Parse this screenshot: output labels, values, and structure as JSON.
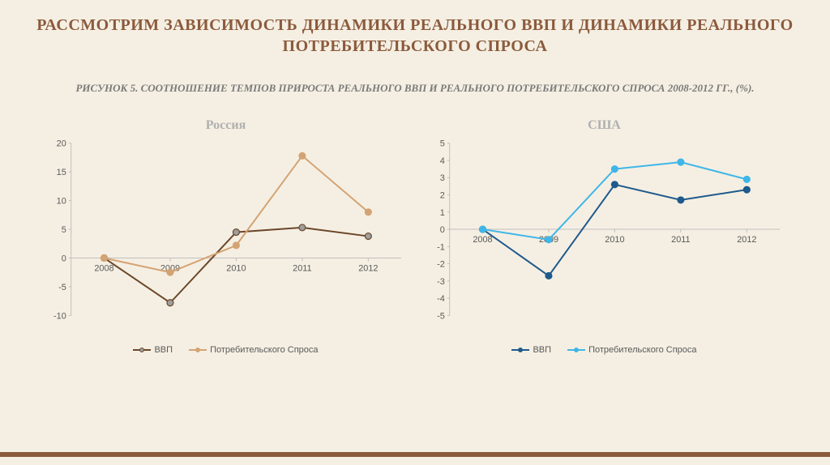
{
  "background_color": "#f5efe3",
  "main_title": "РАССМОТРИМ ЗАВИСИМОСТЬ ДИНАМИКИ РЕАЛЬНОГО ВВП И ДИНАМИКИ РЕАЛЬНОГО ПОТРЕБИТЕЛЬСКОГО СПРОСА",
  "main_title_color": "#8b5a3c",
  "subtitle": "РИСУНОК 5. СООТНОШЕНИЕ ТЕМПОВ ПРИРОСТА РЕАЛЬНОГО ВВП И РЕАЛЬНОГО ПОТРЕБИТЕЛЬСКОГО СПРОСА 2008-2012 ГГ., (%).",
  "subtitle_color": "#7a7a7a",
  "bottom_bar_color": "#8b5a3c",
  "chart_russia": {
    "title": "Россия",
    "title_color": "#b0b0b0",
    "type": "line",
    "categories": [
      "2008",
      "2009",
      "2010",
      "2011",
      "2012"
    ],
    "yticks": [
      -10,
      -5,
      0,
      5,
      10,
      15,
      20
    ],
    "ylim": [
      -10,
      20
    ],
    "axis_color": "#bfbfbf",
    "tick_label_color": "#595959",
    "tick_fontsize": 11,
    "x_baseline_y": 0,
    "series": [
      {
        "name": "ВВП",
        "color": "#6b4628",
        "marker_fill": "#9e9e9e",
        "marker_stroke": "#6b4628",
        "line_width": 2,
        "marker_size": 4,
        "values": [
          0,
          -7.8,
          4.5,
          5.3,
          3.8
        ]
      },
      {
        "name": "Потребительского Спроса",
        "color": "#d4a373",
        "marker_fill": "#d4a373",
        "marker_stroke": "#d4a373",
        "line_width": 2,
        "marker_size": 4,
        "values": [
          0,
          -2.5,
          2.2,
          17.8,
          8.0
        ]
      }
    ]
  },
  "chart_usa": {
    "title": "США",
    "title_color": "#b0b0b0",
    "type": "line",
    "categories": [
      "2008",
      "2009",
      "2010",
      "2011",
      "2012"
    ],
    "yticks": [
      -5,
      -4,
      -3,
      -2,
      -1,
      0,
      1,
      2,
      3,
      4,
      5
    ],
    "ylim": [
      -5,
      5
    ],
    "axis_color": "#bfbfbf",
    "tick_label_color": "#595959",
    "tick_fontsize": 11,
    "x_baseline_y": 0,
    "series": [
      {
        "name": "ВВП",
        "color": "#1f5a8c",
        "marker_fill": "#1f5a8c",
        "marker_stroke": "#1f5a8c",
        "line_width": 2,
        "marker_size": 4,
        "values": [
          0,
          -2.7,
          2.6,
          1.7,
          2.3
        ]
      },
      {
        "name": "Потребительского Спроса",
        "color": "#3fb6e8",
        "marker_fill": "#3fb6e8",
        "marker_stroke": "#3fb6e8",
        "line_width": 2,
        "marker_size": 4,
        "values": [
          0,
          -0.6,
          3.5,
          3.9,
          2.9
        ]
      }
    ]
  }
}
